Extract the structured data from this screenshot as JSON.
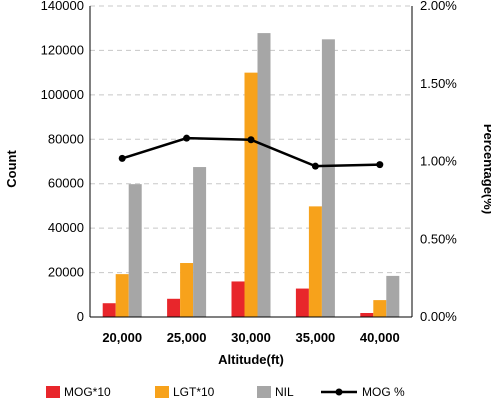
{
  "chart_data": {
    "type": "bar",
    "categories": [
      "20,000",
      "25,000",
      "30,000",
      "35,000",
      "40,000"
    ],
    "series": [
      {
        "name": "MOG*10",
        "type": "bar",
        "axis": "left",
        "color": "#e8262b",
        "values": [
          6200,
          8200,
          16000,
          12800,
          1800
        ]
      },
      {
        "name": "LGT*10",
        "type": "bar",
        "axis": "left",
        "color": "#f7a21b",
        "values": [
          19300,
          24300,
          110000,
          49800,
          7600
        ]
      },
      {
        "name": "NIL",
        "type": "bar",
        "axis": "left",
        "color": "#a6a6a6",
        "values": [
          59800,
          67500,
          127800,
          125000,
          18500
        ]
      },
      {
        "name": "MOG %",
        "type": "line",
        "axis": "right",
        "color": "#000000",
        "values": [
          1.02,
          1.15,
          1.14,
          0.97,
          0.98
        ]
      }
    ],
    "xlabel": "Altitude(ft)",
    "ylabel": "Count",
    "y2label": "Percentage(%)",
    "ylim": [
      0,
      140000
    ],
    "y2lim": [
      0,
      2.0
    ],
    "yticks": [
      "0",
      "20000",
      "40000",
      "60000",
      "80000",
      "100000",
      "120000",
      "140000"
    ],
    "y2ticks": [
      "0.00%",
      "0.50%",
      "1.00%",
      "1.50%",
      "2.00%"
    ],
    "grid": "horizontal dashed",
    "legend": "bottom"
  }
}
